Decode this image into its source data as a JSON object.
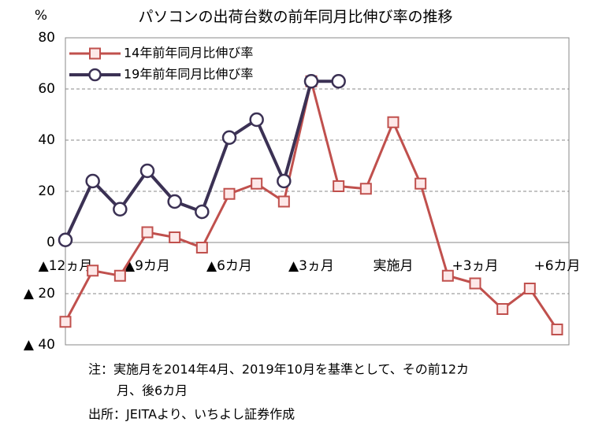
{
  "chart_data": {
    "type": "line",
    "title": "パソコンの出荷台数の前年同月比伸び率の推移",
    "y_unit": "%",
    "categories": [
      "▲12ヵ月",
      null,
      null,
      "▲9カ月",
      null,
      null,
      "▲6カ月",
      null,
      null,
      "▲3ヵ月",
      null,
      null,
      "実施月",
      null,
      null,
      "+3ヵ月",
      null,
      null,
      "+6カ月"
    ],
    "series": [
      {
        "name": "14年前年同月比伸び率",
        "color": "#c0504d",
        "marker": "square",
        "values": [
          -31,
          -11,
          -13,
          4,
          2,
          -2,
          19,
          23,
          16,
          63,
          22,
          21,
          47,
          23,
          -13,
          -16,
          -26,
          -18,
          -34
        ]
      },
      {
        "name": "19年前年同月比伸び率",
        "color": "#3b3154",
        "marker": "circle",
        "values": [
          1,
          24,
          13,
          28,
          16,
          12,
          41,
          48,
          24,
          63,
          63,
          null,
          null,
          null,
          null,
          null,
          null,
          null,
          null
        ]
      }
    ],
    "ylim": [
      -40,
      80
    ],
    "yticks": [
      {
        "value": -40,
        "label": "▲ 40"
      },
      {
        "value": -20,
        "label": "▲ 20"
      },
      0,
      20,
      40,
      60,
      80
    ],
    "grid": true,
    "legend": "top-left",
    "notes": [
      "注：実施月を2014年4月、2019年10月を基準として、その前12カ",
      "月、後6カ月",
      "出所：JEITAより、いちよし証券作成"
    ]
  }
}
